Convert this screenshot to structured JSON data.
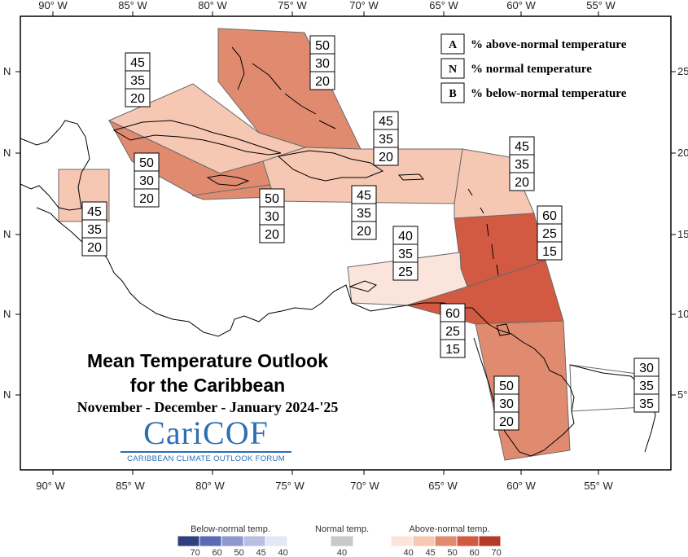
{
  "title_line1": "Mean Temperature Outlook",
  "title_line2": "for the Caribbean",
  "subtitle": "November - December - January 2024-'25",
  "logo": {
    "name": "CariCOF",
    "subtitle": "CARIBBEAN CLIMATE OUTLOOK FORUM"
  },
  "axis": {
    "longitudes": [
      "90° W",
      "85° W",
      "80° W",
      "75° W",
      "70° W",
      "65° W",
      "60° W",
      "55° W"
    ],
    "left_latitude_marks": [
      "N",
      "N",
      "N",
      "N",
      "N"
    ],
    "right_latitudes": [
      "25",
      "20",
      "15",
      "10",
      "5°"
    ]
  },
  "legend": {
    "items": [
      {
        "key": "A",
        "text": "% above-normal temperature"
      },
      {
        "key": "N",
        "text": "% normal temperature"
      },
      {
        "key": "B",
        "text": "% below-normal temperature"
      }
    ]
  },
  "regions": [
    {
      "id": "bahamas",
      "above": "50",
      "normal": "30",
      "below": "20",
      "color": "#e08b70"
    },
    {
      "id": "cuba",
      "above": "45",
      "normal": "35",
      "below": "20",
      "color": "#f6c7b2"
    },
    {
      "id": "cayman-south-cuba",
      "above": "50",
      "normal": "30",
      "below": "20",
      "color": "#e08b70"
    },
    {
      "id": "belize",
      "above": "45",
      "normal": "35",
      "below": "20",
      "color": "#f6c7b2"
    },
    {
      "id": "jamaica",
      "above": "50",
      "normal": "30",
      "below": "20",
      "color": "#e08b70"
    },
    {
      "id": "hispaniola",
      "above": "45",
      "normal": "35",
      "below": "20",
      "color": "#f6c7b2"
    },
    {
      "id": "puerto-rico",
      "above": "45",
      "normal": "35",
      "below": "20",
      "color": "#f6c7b2"
    },
    {
      "id": "leeward-islands",
      "above": "45",
      "normal": "35",
      "below": "20",
      "color": "#f6c7b2"
    },
    {
      "id": "windward-islands",
      "above": "60",
      "normal": "25",
      "below": "15",
      "color": "#d35a42"
    },
    {
      "id": "abc-islands",
      "above": "40",
      "normal": "35",
      "below": "25",
      "color": "#fbe4db"
    },
    {
      "id": "trinidad-barbados",
      "above": "60",
      "normal": "25",
      "below": "15",
      "color": "#d35a42"
    },
    {
      "id": "guyana-suriname",
      "above": "50",
      "normal": "30",
      "below": "20",
      "color": "#e08b70"
    },
    {
      "id": "french-guiana",
      "above": "30",
      "normal": "35",
      "below": "35",
      "color": "#ffffff"
    }
  ],
  "color_scale": {
    "below": {
      "label": "Below-normal temp.",
      "ticks": [
        "70",
        "60",
        "50",
        "45",
        "40"
      ],
      "colors": [
        "#2f3f7f",
        "#5a6ab5",
        "#8e98cf",
        "#b8bfe3",
        "#e4e7f5"
      ]
    },
    "normal": {
      "label": "Normal temp.",
      "ticks": [
        "40"
      ],
      "colors": [
        "#c8c8c8"
      ]
    },
    "above": {
      "label": "Above-normal temp.",
      "ticks": [
        "40",
        "45",
        "50",
        "60",
        "70"
      ],
      "colors": [
        "#fbe4db",
        "#f6c7b2",
        "#e08b70",
        "#d35a42",
        "#b33a27"
      ]
    }
  }
}
